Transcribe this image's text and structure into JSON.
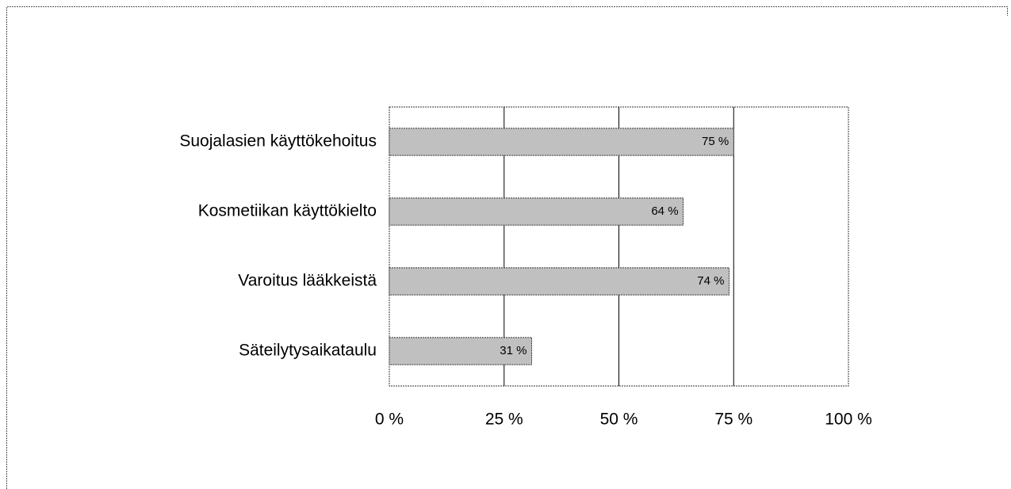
{
  "chart_data": {
    "type": "hbar",
    "categories": [
      "Suojalasien käyttökehoitus",
      "Kosmetiikan käyttökielto",
      "Varoitus lääkkeistä",
      "Säteilytysaikataulu"
    ],
    "values": [
      75,
      64,
      74,
      31
    ],
    "value_labels": [
      "75 %",
      "64 %",
      "74 %",
      "31 %"
    ],
    "color": "#c0c0c0",
    "xlim": [
      0,
      100
    ],
    "xticks": [
      {
        "value": 0,
        "label": "0 %"
      },
      {
        "value": 25,
        "label": "25 %"
      },
      {
        "value": 50,
        "label": "50 %"
      },
      {
        "value": 75,
        "label": "75 %"
      },
      {
        "value": 100,
        "label": "100 %"
      }
    ],
    "grid": true
  }
}
